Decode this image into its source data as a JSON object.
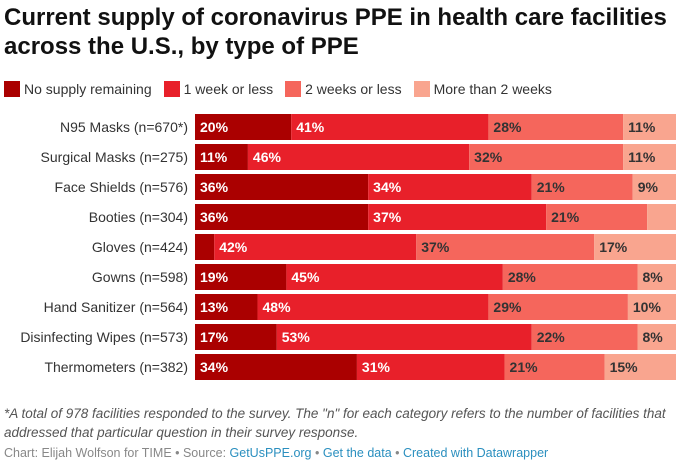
{
  "title": "Current supply of coronavirus PPE in health care facilities across the U.S., by type of PPE",
  "legend": [
    {
      "label": "No supply remaining",
      "color": "#aa0000"
    },
    {
      "label": "1 week or less",
      "color": "#e8202a"
    },
    {
      "label": "2 weeks or less",
      "color": "#f5665c"
    },
    {
      "label": "More than 2 weeks",
      "color": "#f9a58f"
    }
  ],
  "chart_data": {
    "type": "bar",
    "orientation": "horizontal",
    "stacked": true,
    "unit": "%",
    "categories": [
      "N95 Masks (n=670*)",
      "Surgical Masks (n=275)",
      "Face Shields (n=576)",
      "Booties (n=304)",
      "Gloves (n=424)",
      "Gowns (n=598)",
      "Hand Sanitizer (n=564)",
      "Disinfecting Wipes (n=573)",
      "Thermometers (n=382)"
    ],
    "series": [
      {
        "name": "No supply remaining",
        "color": "#aa0000",
        "values": [
          20,
          11,
          36,
          36,
          4,
          19,
          13,
          17,
          34
        ],
        "labels": [
          "20%",
          "11%",
          "36%",
          "36%",
          "",
          "19%",
          "13%",
          "17%",
          "34%"
        ]
      },
      {
        "name": "1 week or less",
        "color": "#e8202a",
        "values": [
          41,
          46,
          34,
          37,
          42,
          45,
          48,
          53,
          31
        ],
        "labels": [
          "41%",
          "46%",
          "34%",
          "37%",
          "42%",
          "45%",
          "48%",
          "53%",
          "31%"
        ]
      },
      {
        "name": "2 weeks or less",
        "color": "#f5665c",
        "values": [
          28,
          32,
          21,
          21,
          37,
          28,
          29,
          22,
          21
        ],
        "labels": [
          "28%",
          "32%",
          "21%",
          "21%",
          "37%",
          "28%",
          "29%",
          "22%",
          "21%"
        ]
      },
      {
        "name": "More than 2 weeks",
        "color": "#f9a58f",
        "values": [
          11,
          11,
          9,
          6,
          17,
          8,
          10,
          8,
          15
        ],
        "labels": [
          "11%",
          "11%",
          "9%",
          "",
          "17%",
          "8%",
          "10%",
          "8%",
          "15%"
        ]
      }
    ],
    "xlim": [
      0,
      100
    ],
    "grid": false,
    "legend_position": "top"
  },
  "footnote": "*A total of 978 facilities responded to the survey. The \"n\" for each category refers to the number of facilities that addressed that particular question in their survey response.",
  "credits": {
    "prefix": "Chart: Elijah Wolfson for TIME • Source: ",
    "source_link": "GetUsPPE.org",
    "sep1": " • ",
    "data_link": "Get the data",
    "sep2": " • ",
    "created_link": "Created with Datawrapper"
  }
}
